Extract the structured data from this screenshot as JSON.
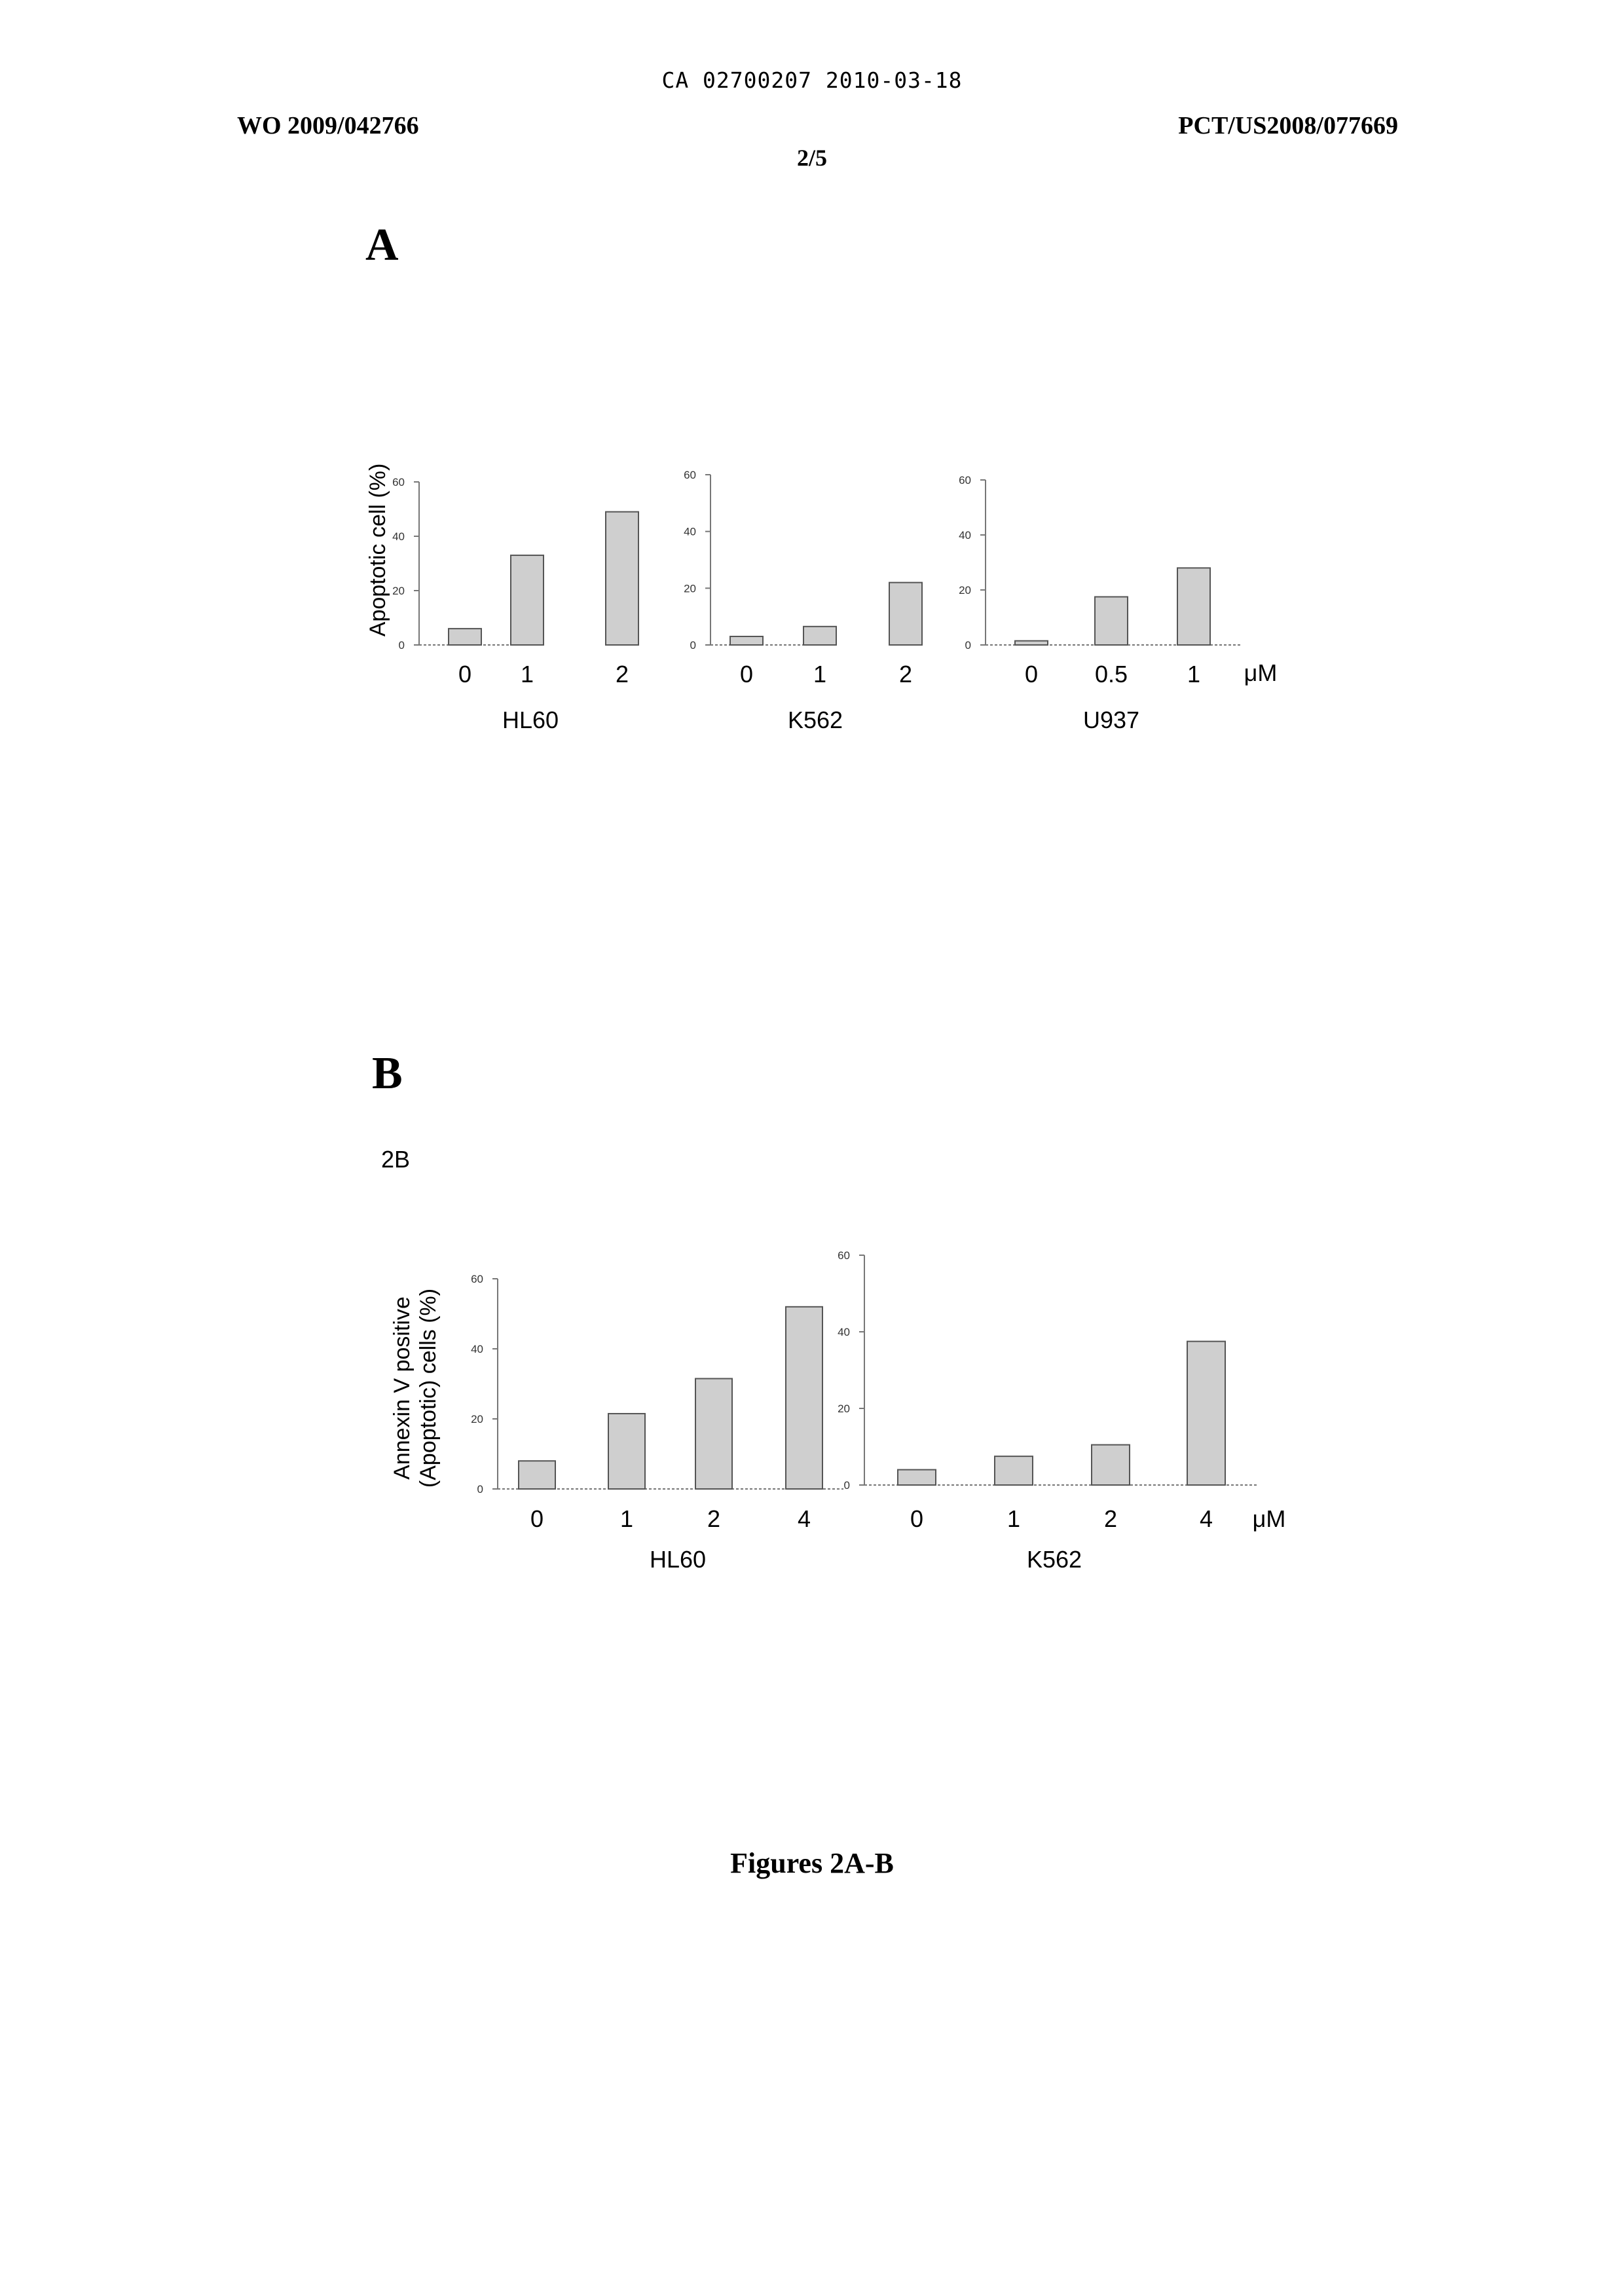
{
  "header": {
    "doc_id": "CA 02700207 2010-03-18",
    "pub_number": "WO 2009/042766",
    "app_number": "PCT/US2008/077669",
    "page": "2/5"
  },
  "panel_a": {
    "letter": "A",
    "ylabel": "Apoptotic cell (%)",
    "unit": "μM"
  },
  "panel_b": {
    "letter": "B",
    "sublabel": "2B",
    "ylabel_line1": "Annexin V positive",
    "ylabel_line2": "(Apoptotic) cells (%)",
    "unit": "μM"
  },
  "caption": "Figures 2A-B",
  "colors": {
    "bar_fill": "#cfcfcf",
    "bar_stroke": "#555555",
    "axis": "#777777"
  },
  "chart_data": [
    {
      "type": "bar",
      "panel": "A",
      "cell_line": "HL60",
      "categories": [
        "0",
        "1",
        "2"
      ],
      "values": [
        6,
        33,
        49
      ],
      "ylim": [
        0,
        60
      ],
      "yticks": [
        "0",
        "20",
        "40",
        "60"
      ],
      "ylabel": "Apoptotic cell (%)",
      "xlabel": "HL60"
    },
    {
      "type": "bar",
      "panel": "A",
      "cell_line": "K562",
      "categories": [
        "0",
        "1",
        "2"
      ],
      "values": [
        3,
        6.5,
        22
      ],
      "ylim": [
        0,
        60
      ],
      "yticks": [
        "0",
        "20",
        "40",
        "60"
      ],
      "xlabel": "K562"
    },
    {
      "type": "bar",
      "panel": "A",
      "cell_line": "U937",
      "categories": [
        "0",
        "0.5",
        "1"
      ],
      "values": [
        1.5,
        17.5,
        28
      ],
      "ylim": [
        0,
        60
      ],
      "yticks": [
        "0",
        "20",
        "40",
        "60"
      ],
      "xlabel": "U937"
    },
    {
      "type": "bar",
      "panel": "B",
      "cell_line": "HL60",
      "categories": [
        "0",
        "1",
        "2",
        "4"
      ],
      "values": [
        8,
        21.5,
        31.5,
        52
      ],
      "ylim": [
        0,
        60
      ],
      "yticks": [
        "0",
        "20",
        "40",
        "60"
      ],
      "ylabel": "Annexin V positive (Apoptotic) cells (%)",
      "xlabel": "HL60"
    },
    {
      "type": "bar",
      "panel": "B",
      "cell_line": "K562",
      "categories": [
        "0",
        "1",
        "2",
        "4"
      ],
      "values": [
        4,
        7.5,
        10.5,
        37.5
      ],
      "ylim": [
        0,
        60
      ],
      "yticks": [
        "0",
        "20",
        "40",
        "60"
      ],
      "xlabel": "K562"
    }
  ]
}
